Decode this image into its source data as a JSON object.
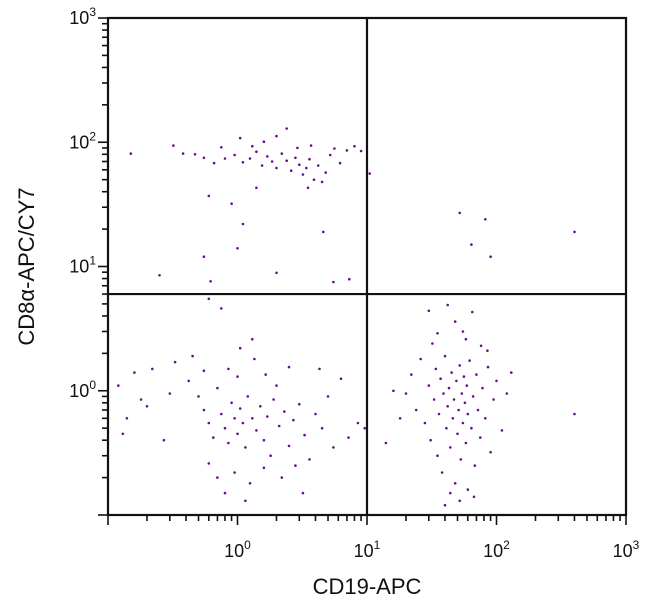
{
  "chart_data": {
    "type": "scatter",
    "title": "",
    "xlabel": "CD19-APC",
    "ylabel": "CD8α-APC/CY7",
    "x_scale": "log",
    "y_scale": "log",
    "xlim": [
      0.1,
      1000
    ],
    "ylim": [
      0.1,
      1000
    ],
    "x_ticks": [
      {
        "value": 1,
        "base": "10",
        "exp": "0"
      },
      {
        "value": 10,
        "base": "10",
        "exp": "1"
      },
      {
        "value": 100,
        "base": "10",
        "exp": "2"
      },
      {
        "value": 1000,
        "base": "10",
        "exp": "3"
      }
    ],
    "y_ticks": [
      {
        "value": 1,
        "base": "10",
        "exp": "0"
      },
      {
        "value": 10,
        "base": "10",
        "exp": "1"
      },
      {
        "value": 100,
        "base": "10",
        "exp": "2"
      },
      {
        "value": 1000,
        "base": "10",
        "exp": "3"
      }
    ],
    "quadrant_gates": {
      "x": 10,
      "y": 6
    },
    "grid": false,
    "legend": "none",
    "point_color": "#6a0d8f",
    "series": [
      {
        "values_points": [
          {
            "x": 0.15,
            "y": 81
          },
          {
            "x": 0.32,
            "y": 94
          },
          {
            "x": 0.38,
            "y": 81
          },
          {
            "x": 0.47,
            "y": 80
          },
          {
            "x": 0.55,
            "y": 75
          },
          {
            "x": 0.66,
            "y": 68
          },
          {
            "x": 0.8,
            "y": 74
          },
          {
            "x": 0.95,
            "y": 79
          },
          {
            "x": 1.1,
            "y": 69
          },
          {
            "x": 1.25,
            "y": 74
          },
          {
            "x": 1.4,
            "y": 84
          },
          {
            "x": 1.55,
            "y": 65
          },
          {
            "x": 1.7,
            "y": 77
          },
          {
            "x": 1.85,
            "y": 70
          },
          {
            "x": 2.0,
            "y": 62
          },
          {
            "x": 2.2,
            "y": 81
          },
          {
            "x": 2.4,
            "y": 71
          },
          {
            "x": 2.6,
            "y": 59
          },
          {
            "x": 2.8,
            "y": 75
          },
          {
            "x": 3.0,
            "y": 66
          },
          {
            "x": 3.2,
            "y": 55
          },
          {
            "x": 3.4,
            "y": 62
          },
          {
            "x": 3.6,
            "y": 73
          },
          {
            "x": 3.9,
            "y": 50
          },
          {
            "x": 4.2,
            "y": 65
          },
          {
            "x": 4.5,
            "y": 48
          },
          {
            "x": 4.8,
            "y": 57
          },
          {
            "x": 5.2,
            "y": 79
          },
          {
            "x": 5.6,
            "y": 89
          },
          {
            "x": 6.2,
            "y": 68
          },
          {
            "x": 7.0,
            "y": 86
          },
          {
            "x": 8.0,
            "y": 93
          },
          {
            "x": 9.0,
            "y": 85
          },
          {
            "x": 1.3,
            "y": 93
          },
          {
            "x": 2.0,
            "y": 112
          },
          {
            "x": 2.4,
            "y": 129
          },
          {
            "x": 1.05,
            "y": 108
          },
          {
            "x": 1.6,
            "y": 101
          },
          {
            "x": 2.9,
            "y": 90
          },
          {
            "x": 3.7,
            "y": 94
          },
          {
            "x": 0.75,
            "y": 91
          },
          {
            "x": 1.4,
            "y": 43
          },
          {
            "x": 3.5,
            "y": 43
          },
          {
            "x": 0.6,
            "y": 37
          },
          {
            "x": 0.9,
            "y": 32
          },
          {
            "x": 1.1,
            "y": 22
          },
          {
            "x": 4.6,
            "y": 19
          },
          {
            "x": 1.0,
            "y": 14
          },
          {
            "x": 0.55,
            "y": 12
          },
          {
            "x": 2.0,
            "y": 8.9
          },
          {
            "x": 0.62,
            "y": 7.6
          },
          {
            "x": 7.3,
            "y": 7.9
          },
          {
            "x": 5.5,
            "y": 7.5
          },
          {
            "x": 0.25,
            "y": 8.5
          },
          {
            "x": 10.5,
            "y": 56
          },
          {
            "x": 52,
            "y": 27
          },
          {
            "x": 82,
            "y": 24
          },
          {
            "x": 400,
            "y": 19
          },
          {
            "x": 64,
            "y": 15
          },
          {
            "x": 90,
            "y": 12
          },
          {
            "x": 0.6,
            "y": 5.5
          },
          {
            "x": 0.75,
            "y": 4.6
          },
          {
            "x": 1.3,
            "y": 2.6
          },
          {
            "x": 1.05,
            "y": 2.2
          },
          {
            "x": 0.45,
            "y": 1.9
          },
          {
            "x": 0.33,
            "y": 1.7
          },
          {
            "x": 0.22,
            "y": 1.5
          },
          {
            "x": 0.16,
            "y": 1.4
          },
          {
            "x": 0.12,
            "y": 1.1
          },
          {
            "x": 0.18,
            "y": 0.85
          },
          {
            "x": 0.14,
            "y": 0.6
          },
          {
            "x": 0.13,
            "y": 0.45
          },
          {
            "x": 0.2,
            "y": 0.75
          },
          {
            "x": 0.27,
            "y": 0.4
          },
          {
            "x": 0.3,
            "y": 0.95
          },
          {
            "x": 0.42,
            "y": 1.2
          },
          {
            "x": 0.5,
            "y": 0.9
          },
          {
            "x": 0.55,
            "y": 0.7
          },
          {
            "x": 0.6,
            "y": 0.55
          },
          {
            "x": 0.65,
            "y": 0.42
          },
          {
            "x": 0.7,
            "y": 1.05
          },
          {
            "x": 0.75,
            "y": 0.65
          },
          {
            "x": 0.8,
            "y": 0.5
          },
          {
            "x": 0.85,
            "y": 0.38
          },
          {
            "x": 0.9,
            "y": 0.8
          },
          {
            "x": 0.95,
            "y": 0.6
          },
          {
            "x": 1.0,
            "y": 0.45
          },
          {
            "x": 1.05,
            "y": 0.72
          },
          {
            "x": 1.1,
            "y": 0.55
          },
          {
            "x": 1.15,
            "y": 0.35
          },
          {
            "x": 1.2,
            "y": 0.9
          },
          {
            "x": 1.3,
            "y": 0.6
          },
          {
            "x": 1.4,
            "y": 0.48
          },
          {
            "x": 1.5,
            "y": 0.75
          },
          {
            "x": 1.6,
            "y": 0.4
          },
          {
            "x": 1.7,
            "y": 0.62
          },
          {
            "x": 1.8,
            "y": 0.3
          },
          {
            "x": 1.9,
            "y": 0.85
          },
          {
            "x": 2.1,
            "y": 0.52
          },
          {
            "x": 2.3,
            "y": 0.68
          },
          {
            "x": 2.5,
            "y": 0.36
          },
          {
            "x": 2.7,
            "y": 0.58
          },
          {
            "x": 3.0,
            "y": 0.78
          },
          {
            "x": 3.3,
            "y": 0.44
          },
          {
            "x": 3.6,
            "y": 0.28
          },
          {
            "x": 4.0,
            "y": 0.65
          },
          {
            "x": 4.5,
            "y": 0.5
          },
          {
            "x": 5.0,
            "y": 0.9
          },
          {
            "x": 5.5,
            "y": 0.35
          },
          {
            "x": 6.3,
            "y": 1.25
          },
          {
            "x": 7.2,
            "y": 0.42
          },
          {
            "x": 0.95,
            "y": 0.22
          },
          {
            "x": 1.25,
            "y": 0.18
          },
          {
            "x": 0.7,
            "y": 0.2
          },
          {
            "x": 1.6,
            "y": 0.24
          },
          {
            "x": 2.2,
            "y": 0.2
          },
          {
            "x": 0.8,
            "y": 0.15
          },
          {
            "x": 1.15,
            "y": 0.13
          },
          {
            "x": 0.6,
            "y": 0.26
          },
          {
            "x": 2.8,
            "y": 0.25
          },
          {
            "x": 3.2,
            "y": 0.15
          },
          {
            "x": 0.85,
            "y": 1.5
          },
          {
            "x": 1.35,
            "y": 1.8
          },
          {
            "x": 1.0,
            "y": 1.3
          },
          {
            "x": 1.65,
            "y": 1.35
          },
          {
            "x": 0.55,
            "y": 1.45
          },
          {
            "x": 2.0,
            "y": 1.1
          },
          {
            "x": 2.5,
            "y": 1.55
          },
          {
            "x": 4.3,
            "y": 1.5
          },
          {
            "x": 8.5,
            "y": 0.55
          },
          {
            "x": 9.6,
            "y": 0.5
          },
          {
            "x": 20,
            "y": 0.95
          },
          {
            "x": 22,
            "y": 1.35
          },
          {
            "x": 24,
            "y": 0.7
          },
          {
            "x": 26,
            "y": 1.8
          },
          {
            "x": 28,
            "y": 0.55
          },
          {
            "x": 30,
            "y": 1.1
          },
          {
            "x": 31,
            "y": 0.4
          },
          {
            "x": 32,
            "y": 2.4
          },
          {
            "x": 33,
            "y": 0.85
          },
          {
            "x": 34,
            "y": 1.5
          },
          {
            "x": 35,
            "y": 0.3
          },
          {
            "x": 36,
            "y": 0.65
          },
          {
            "x": 37,
            "y": 1.25
          },
          {
            "x": 38,
            "y": 0.22
          },
          {
            "x": 39,
            "y": 0.95
          },
          {
            "x": 40,
            "y": 1.9
          },
          {
            "x": 41,
            "y": 0.5
          },
          {
            "x": 42,
            "y": 0.75
          },
          {
            "x": 43,
            "y": 1.05
          },
          {
            "x": 44,
            "y": 0.35
          },
          {
            "x": 45,
            "y": 1.4
          },
          {
            "x": 46,
            "y": 0.6
          },
          {
            "x": 47,
            "y": 0.85
          },
          {
            "x": 48,
            "y": 0.18
          },
          {
            "x": 49,
            "y": 1.2
          },
          {
            "x": 50,
            "y": 0.45
          },
          {
            "x": 51,
            "y": 0.7
          },
          {
            "x": 52,
            "y": 1.6
          },
          {
            "x": 53,
            "y": 0.28
          },
          {
            "x": 54,
            "y": 0.95
          },
          {
            "x": 55,
            "y": 0.55
          },
          {
            "x": 56,
            "y": 1.3
          },
          {
            "x": 57,
            "y": 0.8
          },
          {
            "x": 58,
            "y": 0.38
          },
          {
            "x": 59,
            "y": 1.1
          },
          {
            "x": 60,
            "y": 0.65
          },
          {
            "x": 62,
            "y": 1.75
          },
          {
            "x": 64,
            "y": 0.5
          },
          {
            "x": 66,
            "y": 0.9
          },
          {
            "x": 68,
            "y": 0.25
          },
          {
            "x": 70,
            "y": 1.35
          },
          {
            "x": 72,
            "y": 0.7
          },
          {
            "x": 75,
            "y": 0.42
          },
          {
            "x": 78,
            "y": 1.05
          },
          {
            "x": 82,
            "y": 0.6
          },
          {
            "x": 86,
            "y": 1.55
          },
          {
            "x": 90,
            "y": 0.32
          },
          {
            "x": 95,
            "y": 0.85
          },
          {
            "x": 100,
            "y": 1.2
          },
          {
            "x": 110,
            "y": 0.48
          },
          {
            "x": 120,
            "y": 0.95
          },
          {
            "x": 130,
            "y": 1.4
          },
          {
            "x": 16,
            "y": 1.0
          },
          {
            "x": 18,
            "y": 0.6
          },
          {
            "x": 14,
            "y": 0.38
          },
          {
            "x": 44,
            "y": 0.15
          },
          {
            "x": 52,
            "y": 0.13
          },
          {
            "x": 60,
            "y": 0.16
          },
          {
            "x": 40,
            "y": 0.12
          },
          {
            "x": 67,
            "y": 0.14
          },
          {
            "x": 35,
            "y": 2.9
          },
          {
            "x": 48,
            "y": 3.6
          },
          {
            "x": 55,
            "y": 3.0
          },
          {
            "x": 30,
            "y": 4.4
          },
          {
            "x": 65,
            "y": 4.3
          },
          {
            "x": 42,
            "y": 4.9
          },
          {
            "x": 58,
            "y": 2.6
          },
          {
            "x": 76,
            "y": 2.3
          },
          {
            "x": 85,
            "y": 2.1
          },
          {
            "x": 400,
            "y": 0.65
          }
        ]
      }
    ]
  }
}
